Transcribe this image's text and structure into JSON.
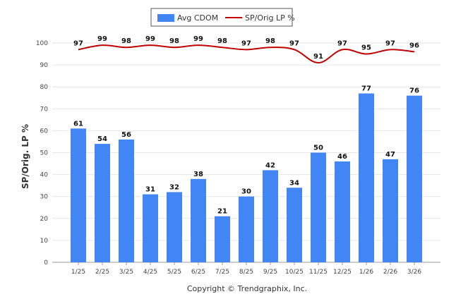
{
  "chart_data": {
    "type": "bar",
    "title": "",
    "xlabel": "",
    "ylabel": "SP/Orig. LP %",
    "ylim": [
      0,
      100
    ],
    "yticks": [
      0,
      10,
      20,
      30,
      40,
      50,
      60,
      70,
      80,
      90,
      100
    ],
    "grid": true,
    "legend_position": "top-center",
    "categories": [
      "1/25",
      "2/25",
      "3/25",
      "4/25",
      "5/25",
      "6/25",
      "7/25",
      "8/25",
      "9/25",
      "10/25",
      "11/25",
      "12/25",
      "1/26",
      "2/26",
      "3/26"
    ],
    "series": [
      {
        "name": "Avg CDOM",
        "type": "bar",
        "color": "#4285f4",
        "values": [
          61,
          54,
          56,
          31,
          32,
          38,
          21,
          30,
          42,
          34,
          50,
          46,
          77,
          47,
          76
        ]
      },
      {
        "name": "SP/Orig LP %",
        "type": "line",
        "color": "#c00000",
        "values": [
          97,
          99,
          98,
          99,
          98,
          99,
          98,
          97,
          98,
          97,
          91,
          97,
          95,
          97,
          96
        ]
      }
    ]
  },
  "footer": {
    "copyright": "Copyright © Trendgraphix, Inc."
  }
}
